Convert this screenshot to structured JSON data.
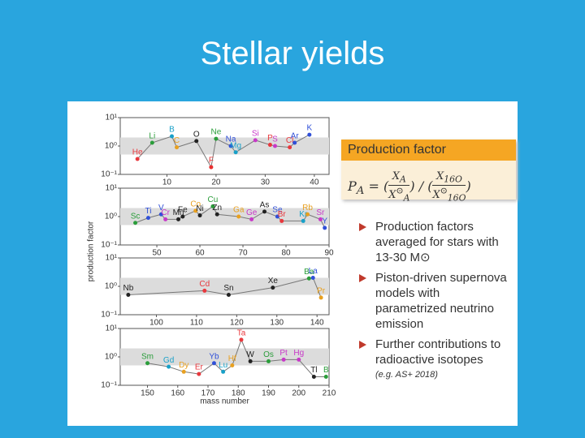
{
  "title": "Stellar yields",
  "chart_data": [
    {
      "type": "scatter",
      "ylabel": "production factor",
      "log_y": true,
      "ylim": [
        0.1,
        10
      ],
      "yticks": [
        {
          "value": 0.1,
          "label": "10⁻¹"
        },
        {
          "value": 1,
          "label": "10⁰"
        },
        {
          "value": 10,
          "label": "10¹"
        }
      ],
      "xlim": [
        0.5,
        43
      ],
      "xticks": [
        10,
        20,
        30,
        40
      ],
      "x": [
        4,
        7,
        11,
        12,
        16,
        19,
        20,
        23,
        24,
        28,
        31,
        32,
        35,
        36,
        39
      ],
      "values": [
        0.35,
        1.3,
        2.2,
        0.9,
        1.5,
        0.18,
        1.8,
        1.0,
        0.6,
        1.6,
        1.1,
        1.0,
        0.9,
        1.3,
        2.5
      ],
      "point_labels": [
        "He",
        "Li",
        "B",
        "C",
        "O",
        "F",
        "Ne",
        "Na",
        "Mg",
        "Si",
        "P",
        "S",
        "Cl",
        "Ar",
        "K"
      ],
      "colors": [
        "#e8383d",
        "#2a9d3a",
        "#18a0c8",
        "#e8a020",
        "#222222",
        "#e83030",
        "#2a9d3a",
        "#3050d8",
        "#18a0c8",
        "#c838c8",
        "#e8383d",
        "#c838c8",
        "#e8383d",
        "#3050d8",
        "#3050d8"
      ]
    },
    {
      "type": "scatter",
      "log_y": true,
      "ylim": [
        0.1,
        10
      ],
      "yticks": [
        {
          "value": 0.1,
          "label": "10⁻¹"
        },
        {
          "value": 1,
          "label": "10⁰"
        },
        {
          "value": 10,
          "label": "10¹"
        }
      ],
      "xlim": [
        41.5,
        90
      ],
      "xticks": [
        50,
        60,
        70,
        80,
        90
      ],
      "x": [
        45,
        48,
        51,
        52,
        55,
        56,
        59,
        60,
        63,
        64,
        69,
        72,
        75,
        78,
        79,
        84,
        85,
        88,
        89
      ],
      "values": [
        0.6,
        0.9,
        1.2,
        0.8,
        0.8,
        1.0,
        1.6,
        1.1,
        2.3,
        1.2,
        1.0,
        0.8,
        1.5,
        1.0,
        0.7,
        0.7,
        1.2,
        0.8,
        0.4
      ],
      "point_labels": [
        "Sc",
        "Ti",
        "V",
        "Cr",
        "Mn",
        "Fe",
        "Co",
        "Ni",
        "Cu",
        "Zn",
        "Ga",
        "Ge",
        "As",
        "Se",
        "Br",
        "Kr",
        "Rb",
        "Sr",
        "Y"
      ],
      "colors": [
        "#2a9d3a",
        "#3050d8",
        "#3050d8",
        "#c838c8",
        "#222222",
        "#222222",
        "#e8a020",
        "#222222",
        "#2a9d3a",
        "#222222",
        "#e8a020",
        "#c838c8",
        "#222222",
        "#3050d8",
        "#e8383d",
        "#18a0c8",
        "#e8a020",
        "#c838c8",
        "#3050d8"
      ]
    },
    {
      "type": "scatter",
      "log_y": true,
      "ylim": [
        0.1,
        10
      ],
      "yticks": [
        {
          "value": 0.1,
          "label": "10⁻¹"
        },
        {
          "value": 1,
          "label": "10⁰"
        },
        {
          "value": 10,
          "label": "10¹"
        }
      ],
      "xlim": [
        91,
        143
      ],
      "xticks": [
        100,
        110,
        120,
        130,
        140
      ],
      "x": [
        93,
        112,
        118,
        129,
        138,
        139,
        141
      ],
      "values": [
        0.5,
        0.7,
        0.5,
        0.9,
        1.9,
        2.0,
        0.4
      ],
      "point_labels": [
        "Nb",
        "Cd",
        "Sn",
        "Xe",
        "Ba",
        "La",
        "Pr"
      ],
      "colors": [
        "#222222",
        "#e8383d",
        "#222222",
        "#222222",
        "#2a9d3a",
        "#3050d8",
        "#e8a020"
      ]
    },
    {
      "type": "scatter",
      "log_y": true,
      "ylim": [
        0.1,
        10
      ],
      "xlabel": "mass number",
      "yticks": [
        {
          "value": 0.1,
          "label": "10⁻¹"
        },
        {
          "value": 1,
          "label": "10⁰"
        },
        {
          "value": 10,
          "label": "10¹"
        }
      ],
      "xlim": [
        141,
        210
      ],
      "xticks": [
        150,
        160,
        170,
        180,
        190,
        200,
        210
      ],
      "x": [
        150,
        157,
        162,
        167,
        172,
        175,
        178,
        181,
        184,
        190,
        195,
        200,
        205,
        209
      ],
      "values": [
        0.6,
        0.45,
        0.3,
        0.25,
        0.6,
        0.3,
        0.5,
        4.0,
        0.7,
        0.7,
        0.8,
        0.8,
        0.2,
        0.2
      ],
      "point_labels": [
        "Sm",
        "Gd",
        "Dy",
        "Er",
        "Yb",
        "Lu",
        "Hf",
        "Ta",
        "W",
        "Os",
        "Pt",
        "Hg",
        "Tl",
        "B"
      ],
      "colors": [
        "#2a9d3a",
        "#18a0c8",
        "#e8a020",
        "#e8383d",
        "#3050d8",
        "#18a0c8",
        "#e8a020",
        "#e8383d",
        "#222222",
        "#2a9d3a",
        "#c838c8",
        "#c838c8",
        "#222222",
        "#2a9d3a"
      ]
    }
  ],
  "box": {
    "title": "Production factor",
    "formula": {
      "lhs": "P",
      "lhs_sub": "A",
      "eq": "=",
      "num1": "X",
      "num1_sub": "A",
      "den1": "X",
      "den1_sub": "A",
      "den1_sup": "⊙",
      "slash": "/",
      "num2": "X",
      "num2_sub": "16O",
      "den2": "X",
      "den2_sub": "16O",
      "den2_sup": "⊙"
    }
  },
  "bullets": [
    {
      "lines": [
        "Production factors",
        "averaged for stars with",
        "13-30 M⊙"
      ]
    },
    {
      "lines": [
        "Piston-driven supernova",
        "models with",
        "parametrized neutrino",
        "emission"
      ]
    },
    {
      "lines": [
        "Further contributions to",
        "radioactive isotopes"
      ],
      "note": "(e.g. AS+ 2018)"
    }
  ]
}
